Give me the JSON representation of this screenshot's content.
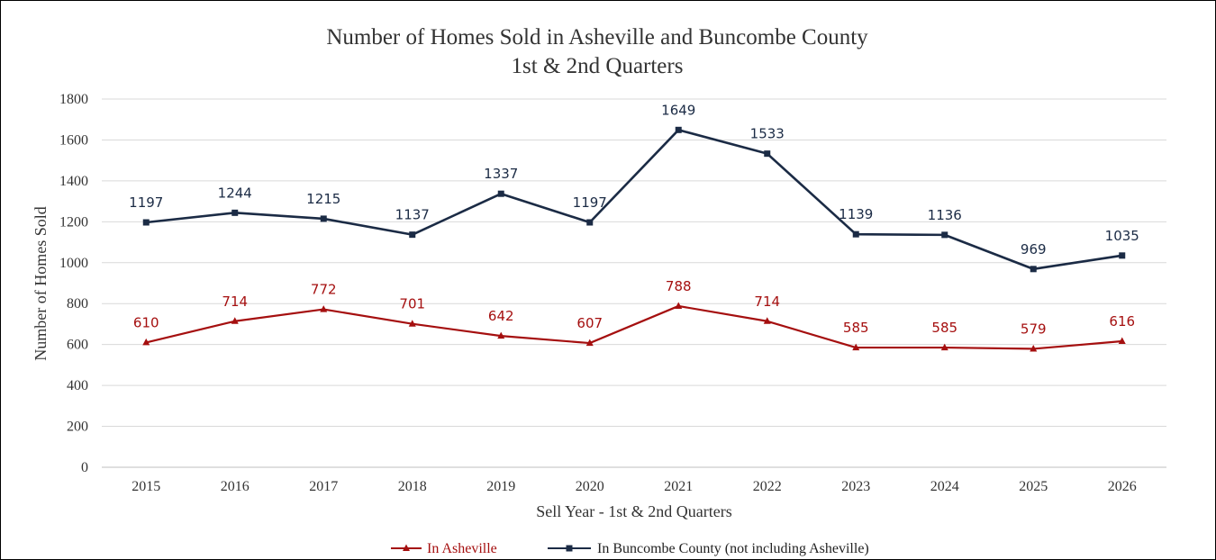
{
  "chart_data": {
    "type": "line",
    "title": [
      "Number of Homes Sold in Asheville and Buncombe County",
      "1st & 2nd Quarters"
    ],
    "xlabel": "Sell Year - 1st & 2nd Quarters",
    "ylabel": "Number of Homes Sold",
    "ylim": [
      0,
      1800
    ],
    "yticks": [
      "0",
      "200",
      "400",
      "600",
      "800",
      "1000",
      "1200",
      "1400",
      "1600",
      "1800"
    ],
    "ytick_values": [
      0,
      200,
      400,
      600,
      800,
      1000,
      1200,
      1400,
      1600,
      1800
    ],
    "categories": [
      "2015",
      "2016",
      "2017",
      "2018",
      "2019",
      "2020",
      "2021",
      "2022",
      "2023",
      "2024",
      "2025",
      "2026"
    ],
    "grid": true,
    "legend_position": "bottom",
    "series": [
      {
        "name": "In Asheville",
        "color": "#a50f0f",
        "marker": "triangle",
        "values": [
          610,
          714,
          772,
          701,
          642,
          607,
          788,
          714,
          585,
          585,
          579,
          616
        ]
      },
      {
        "name": "In Buncombe County (not including Asheville)",
        "color": "#1b2b45",
        "marker": "square",
        "values": [
          1197,
          1244,
          1215,
          1137,
          1337,
          1197,
          1649,
          1533,
          1139,
          1136,
          969,
          1035
        ]
      }
    ]
  }
}
